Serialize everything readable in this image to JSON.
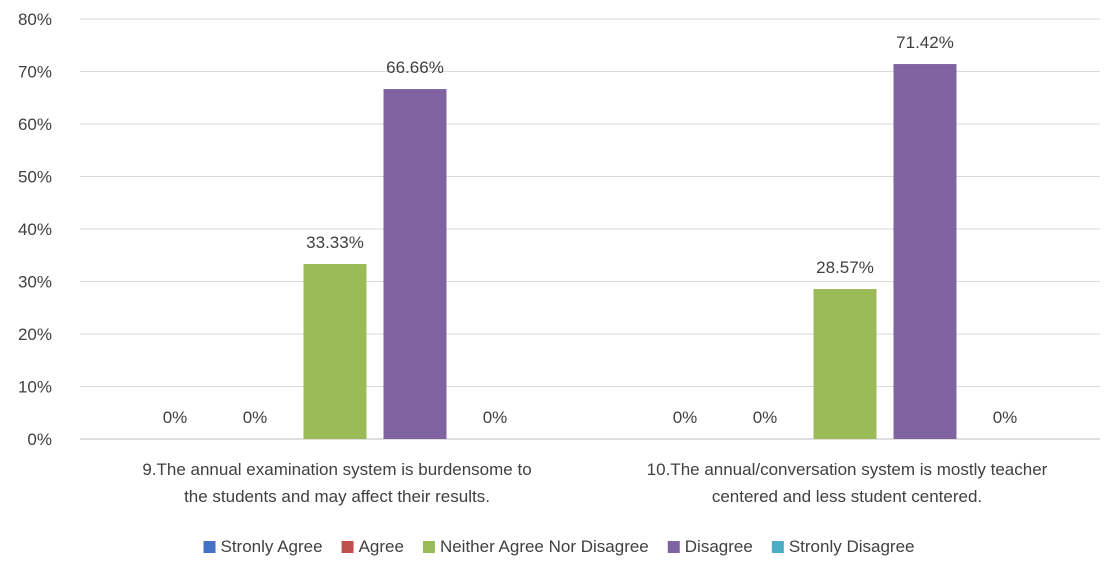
{
  "chart_data": {
    "type": "bar",
    "ylim": [
      0,
      80
    ],
    "y_ticks": [
      "0%",
      "10%",
      "20%",
      "30%",
      "40%",
      "50%",
      "60%",
      "70%",
      "80%"
    ],
    "y_tick_values": [
      0,
      10,
      20,
      30,
      40,
      50,
      60,
      70,
      80
    ],
    "grid": true,
    "legend_position": "bottom",
    "categories": [
      [
        "9.The annual examination system is burdensome to",
        "the students and may affect their results."
      ],
      [
        "10.The annual/conversation system is mostly teacher",
        "centered and less student centered."
      ]
    ],
    "series": [
      {
        "name": "Stronly Agree",
        "color": "#4472C4",
        "values": [
          0,
          0
        ],
        "labels": [
          "0%",
          "0%"
        ]
      },
      {
        "name": "Agree",
        "color": "#C0504D",
        "values": [
          0,
          0
        ],
        "labels": [
          "0%",
          "0%"
        ]
      },
      {
        "name": "Neither Agree Nor Disagree",
        "color": "#9BBB59",
        "values": [
          33.33,
          28.57
        ],
        "labels": [
          "33.33%",
          "28.57%"
        ]
      },
      {
        "name": "Disagree",
        "color": "#8064A2",
        "values": [
          66.66,
          71.42
        ],
        "labels": [
          "66.66%",
          "71.42%"
        ]
      },
      {
        "name": "Stronly Disagree",
        "color": "#4BACC6",
        "values": [
          0,
          0
        ],
        "labels": [
          "0%",
          "0%"
        ]
      }
    ]
  }
}
